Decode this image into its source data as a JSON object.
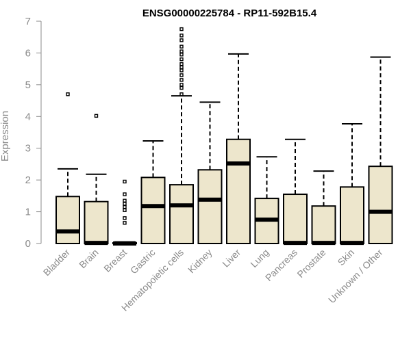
{
  "chart_data": {
    "type": "box",
    "title": "ENSG00000225784 - RP11-592B15.4",
    "ylabel": "Expression",
    "xlabel": "",
    "ylim": [
      0,
      7
    ],
    "yticks": [
      0,
      1,
      2,
      3,
      4,
      5,
      6,
      7
    ],
    "box_fill": "#ede6cc",
    "box_stroke": "#000000",
    "categories": [
      "Bladder",
      "Brain",
      "Breast",
      "Gastric",
      "Hematopoietic cells",
      "Kidney",
      "Liver",
      "Lung",
      "Pancreas",
      "Prostate",
      "Skin",
      "Unknown / Other"
    ],
    "boxes": [
      {
        "q1": 0,
        "median": 0.38,
        "q3": 1.48,
        "whisker_low": 0,
        "whisker_high": 2.35,
        "outliers": [
          4.7
        ]
      },
      {
        "q1": 0,
        "median": 0.02,
        "q3": 1.32,
        "whisker_low": 0,
        "whisker_high": 2.18,
        "outliers": [
          4.02
        ]
      },
      {
        "q1": 0,
        "median": 0.0,
        "q3": 0.02,
        "whisker_low": 0,
        "whisker_high": 0.05,
        "outliers": [
          0.65,
          0.8,
          1.05,
          1.15,
          1.25,
          1.35,
          1.55,
          1.95
        ]
      },
      {
        "q1": 0,
        "median": 1.18,
        "q3": 2.08,
        "whisker_low": 0,
        "whisker_high": 3.23,
        "outliers": []
      },
      {
        "q1": 0,
        "median": 1.2,
        "q3": 1.85,
        "whisker_low": 0,
        "whisker_high": 4.65,
        "outliers": [
          4.7,
          4.9,
          5.0,
          5.15,
          5.3,
          5.45,
          5.55,
          5.65,
          5.8,
          5.95,
          6.05,
          6.2,
          6.4,
          6.55,
          6.75
        ]
      },
      {
        "q1": 0,
        "median": 1.38,
        "q3": 2.32,
        "whisker_low": 0,
        "whisker_high": 4.45,
        "outliers": []
      },
      {
        "q1": 0,
        "median": 2.52,
        "q3": 3.28,
        "whisker_low": 0,
        "whisker_high": 5.97,
        "outliers": []
      },
      {
        "q1": 0,
        "median": 0.75,
        "q3": 1.42,
        "whisker_low": 0,
        "whisker_high": 2.73,
        "outliers": []
      },
      {
        "q1": 0,
        "median": 0.02,
        "q3": 1.55,
        "whisker_low": 0,
        "whisker_high": 3.28,
        "outliers": []
      },
      {
        "q1": 0,
        "median": 0.02,
        "q3": 1.18,
        "whisker_low": 0,
        "whisker_high": 2.28,
        "outliers": []
      },
      {
        "q1": 0,
        "median": 0.02,
        "q3": 1.78,
        "whisker_low": 0,
        "whisker_high": 3.77,
        "outliers": []
      },
      {
        "q1": 0,
        "median": 1.0,
        "q3": 2.43,
        "whisker_low": 0,
        "whisker_high": 5.87,
        "outliers": []
      }
    ]
  }
}
